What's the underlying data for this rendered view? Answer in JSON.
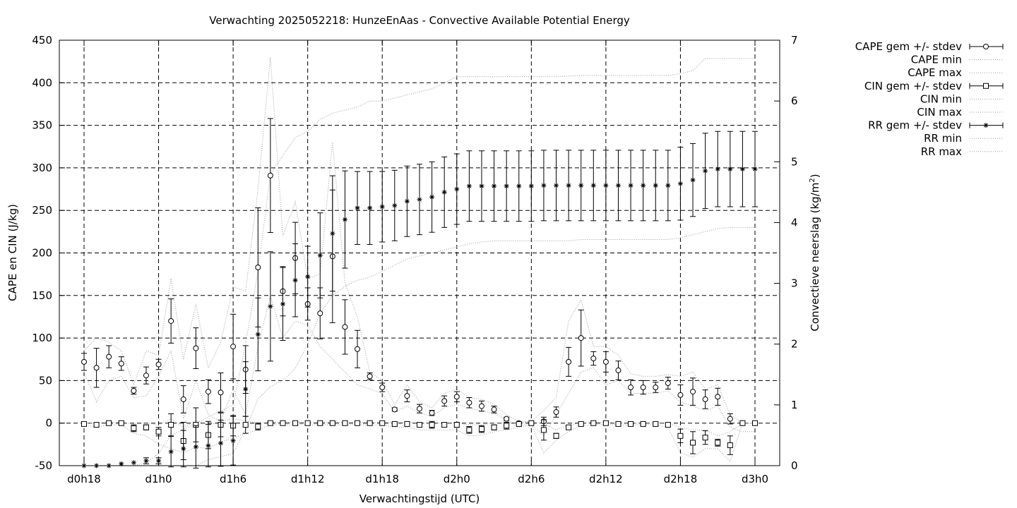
{
  "chart_data": {
    "type": "line",
    "title": "Verwachting 2025052218: HunzeEnAas - Convective Available Potential Energy",
    "xlabel": "Verwachtingstijd (UTC)",
    "ylabel": "CAPE en CIN (J/kg)",
    "y2label": "Convectieve neerslag (kg/m²)",
    "y2label_main": "Convectieve neerslag (kg/m",
    "y2label_sup": "2",
    "y2label_close": ")",
    "xlim": [
      0,
      54
    ],
    "ylim": [
      -50,
      450
    ],
    "y2lim": [
      0,
      7
    ],
    "grid": true,
    "legend_placement": "outside-right",
    "x_ticks": [
      0,
      6,
      12,
      18,
      24,
      30,
      36,
      42,
      48,
      54
    ],
    "x_tick_labels": [
      "d0h18",
      "d1h0",
      "d1h6",
      "d1h12",
      "d1h18",
      "d2h0",
      "d2h6",
      "d2h12",
      "d2h18",
      "d3h0"
    ],
    "y_ticks": [
      -50,
      0,
      50,
      100,
      150,
      200,
      250,
      300,
      350,
      400,
      450
    ],
    "y2_ticks": [
      0,
      1,
      2,
      3,
      4,
      5,
      6,
      7
    ],
    "x": [
      0,
      1,
      2,
      3,
      4,
      5,
      6,
      7,
      8,
      9,
      10,
      11,
      12,
      13,
      14,
      15,
      16,
      17,
      18,
      19,
      20,
      21,
      22,
      23,
      24,
      25,
      26,
      27,
      28,
      29,
      30,
      31,
      32,
      33,
      34,
      35,
      36,
      37,
      38,
      39,
      40,
      41,
      42,
      43,
      44,
      45,
      46,
      47,
      48,
      49,
      50,
      51,
      52,
      53,
      54
    ],
    "series": [
      {
        "name": "CAPE gem +/- stdev",
        "axis": "y1",
        "style": "errorbar",
        "marker": "circle",
        "mean": [
          72,
          65,
          78,
          70,
          38,
          56,
          69,
          120,
          28,
          88,
          37,
          36,
          90,
          63,
          183,
          291,
          155,
          194,
          140,
          129,
          196,
          113,
          87,
          55,
          42,
          16,
          32,
          17,
          12,
          26,
          31,
          24,
          20,
          16,
          5,
          0,
          0,
          2,
          13,
          72,
          100,
          76,
          72,
          62,
          42,
          42,
          42,
          47,
          33,
          37,
          28,
          31,
          5,
          0,
          0
        ],
        "stdev": [
          10,
          23,
          13,
          8,
          4,
          10,
          6,
          26,
          16,
          24,
          14,
          23,
          38,
          28,
          70,
          67,
          29,
          42,
          19,
          30,
          78,
          32,
          22,
          4,
          5,
          2,
          7,
          5,
          3,
          6,
          6,
          6,
          6,
          4,
          2,
          1,
          1,
          5,
          6,
          17,
          33,
          8,
          12,
          11,
          9,
          8,
          6,
          7,
          12,
          16,
          11,
          10,
          6,
          0,
          0
        ]
      },
      {
        "name": "CAPE min",
        "axis": "y1",
        "style": "dotted",
        "values": [
          60,
          25,
          50,
          55,
          30,
          32,
          55,
          85,
          5,
          50,
          10,
          2,
          40,
          10,
          90,
          150,
          100,
          120,
          115,
          90,
          75,
          60,
          45,
          40,
          35,
          13,
          20,
          12,
          8,
          18,
          22,
          18,
          14,
          12,
          3,
          -2,
          -2,
          -15,
          10,
          35,
          60,
          65,
          45,
          50,
          35,
          35,
          35,
          38,
          25,
          20,
          15,
          20,
          -5,
          -10,
          -10
        ]
      },
      {
        "name": "CAPE max",
        "axis": "y1",
        "style": "dotted",
        "values": [
          85,
          100,
          95,
          85,
          45,
          85,
          80,
          170,
          75,
          140,
          65,
          95,
          160,
          155,
          275,
          430,
          220,
          260,
          170,
          175,
          330,
          165,
          125,
          60,
          50,
          22,
          45,
          25,
          18,
          35,
          40,
          30,
          28,
          22,
          10,
          2,
          2,
          15,
          30,
          120,
          145,
          90,
          90,
          80,
          58,
          55,
          55,
          57,
          55,
          60,
          40,
          45,
          10,
          0,
          0
        ]
      },
      {
        "name": "CIN gem +/- stdev",
        "axis": "y1",
        "style": "errorbar",
        "marker": "square",
        "mean": [
          -1,
          -2,
          0,
          0,
          -6,
          -5,
          -10,
          -2,
          -21,
          -2,
          -14,
          -2,
          -3,
          -2,
          -4,
          0,
          0,
          0,
          0,
          0,
          0,
          0,
          0,
          0,
          0,
          -1,
          -1,
          -2,
          -2,
          -2,
          -2,
          -8,
          -7,
          -5,
          -3,
          -1,
          0,
          -8,
          -15,
          -5,
          -1,
          0,
          0,
          -1,
          -1,
          -1,
          -1,
          -2,
          -15,
          -23,
          -17,
          -23,
          -26,
          0,
          0
        ],
        "stdev": [
          2,
          2,
          1,
          1,
          4,
          3,
          5,
          13,
          22,
          20,
          16,
          14,
          12,
          10,
          4,
          1,
          1,
          1,
          1,
          1,
          1,
          1,
          1,
          1,
          1,
          1,
          1,
          2,
          4,
          2,
          3,
          4,
          4,
          3,
          4,
          2,
          1,
          12,
          3,
          2,
          1,
          1,
          1,
          1,
          1,
          1,
          1,
          2,
          8,
          13,
          8,
          4,
          11,
          0,
          0
        ]
      },
      {
        "name": "CIN min",
        "axis": "y1",
        "style": "dotted",
        "values": [
          -3,
          -4,
          -2,
          -2,
          -12,
          -15,
          -25,
          -30,
          -35,
          -28,
          -30,
          -22,
          -18,
          -12,
          -8,
          -2,
          -2,
          -2,
          -2,
          -2,
          -2,
          -2,
          -2,
          -2,
          -2,
          -5,
          -5,
          -8,
          -8,
          -8,
          -8,
          -15,
          -14,
          -10,
          -8,
          -5,
          -2,
          -35,
          -20,
          -10,
          -3,
          -2,
          -2,
          -2,
          -2,
          -2,
          -2,
          -5,
          -35,
          -40,
          -30,
          -30,
          -45,
          0,
          0
        ]
      },
      {
        "name": "CIN max",
        "axis": "y1",
        "style": "dotted",
        "values": [
          0,
          0,
          1,
          1,
          -1,
          0,
          -2,
          5,
          -5,
          3,
          -2,
          2,
          5,
          3,
          0,
          1,
          1,
          1,
          1,
          1,
          1,
          1,
          1,
          1,
          1,
          1,
          1,
          0,
          0,
          0,
          0,
          -2,
          -2,
          0,
          0,
          1,
          1,
          0,
          -8,
          -2,
          0,
          1,
          1,
          0,
          0,
          0,
          0,
          0,
          -5,
          -8,
          -8,
          -15,
          -10,
          0,
          0
        ]
      },
      {
        "name": "RR gem +/- stdev",
        "axis": "y2",
        "style": "errorbar",
        "marker": "star",
        "mean": [
          0,
          0,
          0,
          0.03,
          0.05,
          0.08,
          0.08,
          0.23,
          0.28,
          0.31,
          0.33,
          0.37,
          0.41,
          1.26,
          2.16,
          2.62,
          2.66,
          3.05,
          3.11,
          3.46,
          3.82,
          4.05,
          4.24,
          4.24,
          4.26,
          4.28,
          4.35,
          4.38,
          4.42,
          4.5,
          4.55,
          4.6,
          4.6,
          4.6,
          4.6,
          4.6,
          4.6,
          4.61,
          4.61,
          4.61,
          4.61,
          4.61,
          4.61,
          4.61,
          4.61,
          4.61,
          4.61,
          4.61,
          4.64,
          4.7,
          4.85,
          4.88,
          4.88,
          4.88,
          4.88
        ],
        "stdev": [
          0,
          0,
          0,
          0,
          0,
          0.05,
          0.05,
          0.25,
          0.3,
          0.35,
          0.35,
          0.38,
          0.4,
          0.45,
          0.6,
          0.9,
          0.6,
          0.6,
          0.5,
          0.7,
          0.95,
          0.8,
          0.6,
          0.6,
          0.58,
          0.58,
          0.58,
          0.58,
          0.58,
          0.58,
          0.58,
          0.58,
          0.58,
          0.58,
          0.58,
          0.58,
          0.58,
          0.58,
          0.58,
          0.58,
          0.58,
          0.58,
          0.58,
          0.58,
          0.58,
          0.58,
          0.58,
          0.58,
          0.6,
          0.6,
          0.62,
          0.62,
          0.62,
          0.62,
          0.62
        ]
      },
      {
        "name": "RR min",
        "axis": "y2",
        "style": "dotted",
        "values": [
          0,
          0,
          0,
          0,
          0,
          0,
          0,
          0,
          0,
          0,
          0.1,
          0.15,
          0.2,
          0.6,
          1.1,
          1.3,
          1.4,
          1.6,
          2.0,
          2.5,
          2.8,
          2.95,
          3.05,
          3.1,
          3.2,
          3.3,
          3.4,
          3.45,
          3.5,
          3.55,
          3.6,
          3.65,
          3.68,
          3.7,
          3.7,
          3.7,
          3.7,
          3.7,
          3.7,
          3.7,
          3.72,
          3.72,
          3.72,
          3.72,
          3.72,
          3.72,
          3.72,
          3.72,
          3.75,
          3.8,
          3.85,
          3.9,
          3.92,
          3.92,
          3.92
        ],
        "end_note": "flat segments"
      },
      {
        "name": "RR max",
        "axis": "y2",
        "style": "dotted",
        "values": [
          0,
          0,
          0,
          0,
          0,
          0.05,
          0.2,
          0.5,
          0.6,
          0.7,
          0.8,
          0.9,
          1.0,
          2.0,
          3.2,
          4.8,
          5.1,
          5.4,
          5.5,
          5.7,
          5.8,
          5.85,
          5.9,
          6.0,
          6.0,
          6.05,
          6.1,
          6.15,
          6.2,
          6.3,
          6.4,
          6.4,
          6.4,
          6.4,
          6.4,
          6.4,
          6.4,
          6.4,
          6.4,
          6.41,
          6.42,
          6.42,
          6.42,
          6.42,
          6.42,
          6.42,
          6.42,
          6.42,
          6.45,
          6.5,
          6.7,
          6.7,
          6.7,
          6.7,
          6.7
        ]
      }
    ]
  }
}
